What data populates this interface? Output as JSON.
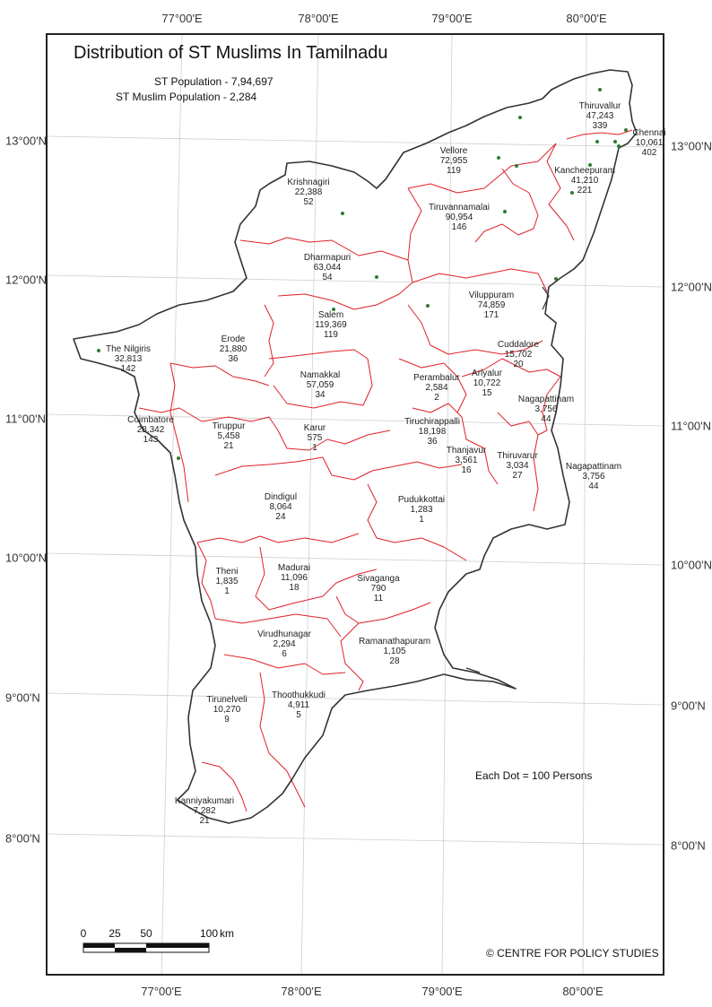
{
  "title": "Distribution of ST Muslims In Tamilnadu",
  "stats": {
    "st_population": "ST Population - 7,94,697",
    "st_muslim_population": "ST Muslim Population - 2,284"
  },
  "longitudes": [
    "77°00'E",
    "78°00'E",
    "79°00'E",
    "80°00'E"
  ],
  "latitudes": [
    "13°00'N",
    "12°00'N",
    "11°00'N",
    "10°00'N",
    "9°00'N",
    "8°00'N"
  ],
  "districts": [
    {
      "name": "Thiruvallur",
      "st_pop": "47,243",
      "muslims": "339"
    },
    {
      "name": "Chennai",
      "st_pop": "10,061",
      "muslims": "402"
    },
    {
      "name": "Vellore",
      "st_pop": "72,955",
      "muslims": "119"
    },
    {
      "name": "Kancheepuram",
      "st_pop": "41,210",
      "muslims": "221"
    },
    {
      "name": "Krishnagiri",
      "st_pop": "22,388",
      "muslims": "52"
    },
    {
      "name": "Tiruvannamalai",
      "st_pop": "90,954",
      "muslims": "146"
    },
    {
      "name": "Dharmapuri",
      "st_pop": "63,044",
      "muslims": "54"
    },
    {
      "name": "Salem",
      "st_pop": "119,369",
      "muslims": "119"
    },
    {
      "name": "Viluppuram",
      "st_pop": "74,859",
      "muslims": "171"
    },
    {
      "name": "The Nilgiris",
      "st_pop": "32,813",
      "muslims": "142"
    },
    {
      "name": "Erode",
      "st_pop": "21,880",
      "muslims": "36"
    },
    {
      "name": "Cuddalore",
      "st_pop": "15,702",
      "muslims": "20"
    },
    {
      "name": "Namakkal",
      "st_pop": "57,059",
      "muslims": "34"
    },
    {
      "name": "Perambalur",
      "st_pop": "2,584",
      "muslims": "2"
    },
    {
      "name": "Ariyalur",
      "st_pop": "10,722",
      "muslims": "15"
    },
    {
      "name": "Nagapattinam",
      "st_pop": "3,756",
      "muslims": "44"
    },
    {
      "name": "Coimbatore",
      "st_pop": "28,342",
      "muslims": "143"
    },
    {
      "name": "Tiruppur",
      "st_pop": "5,458",
      "muslims": "21"
    },
    {
      "name": "Karur",
      "st_pop": "575",
      "muslims": "1"
    },
    {
      "name": "Tiruchirappalli",
      "st_pop": "18,198",
      "muslims": "36"
    },
    {
      "name": "Thanjavur",
      "st_pop": "3,561",
      "muslims": "16"
    },
    {
      "name": "Thiruvarur",
      "st_pop": "3,034",
      "muslims": "27"
    },
    {
      "name": "Nagapattinam",
      "st_pop": "3,756",
      "muslims": "44"
    },
    {
      "name": "Dindigul",
      "st_pop": "8,064",
      "muslims": "24"
    },
    {
      "name": "Pudukkottai",
      "st_pop": "1,283",
      "muslims": "1"
    },
    {
      "name": "Theni",
      "st_pop": "1,835",
      "muslims": "1"
    },
    {
      "name": "Madurai",
      "st_pop": "11,096",
      "muslims": "18"
    },
    {
      "name": "Sivaganga",
      "st_pop": "790",
      "muslims": "11"
    },
    {
      "name": "Virudhunagar",
      "st_pop": "2,294",
      "muslims": "6"
    },
    {
      "name": "Ramanathapuram",
      "st_pop": "1,105",
      "muslims": "28"
    },
    {
      "name": "Tirunelveli",
      "st_pop": "10,270",
      "muslims": "9"
    },
    {
      "name": "Thoothukkudi",
      "st_pop": "4,911",
      "muslims": "5"
    },
    {
      "name": "Kanniyakumari",
      "st_pop": "7,282",
      "muslims": "21"
    }
  ],
  "dot_legend": "Each Dot = 100 Persons",
  "scale": {
    "ticks": [
      "0",
      "25",
      "50",
      "100"
    ],
    "unit": "km"
  },
  "credit": "© CENTRE FOR POLICY STUDIES",
  "colors": {
    "state_boundary": "#333333",
    "district_boundary": "#e0202a",
    "dot": "#2e7d32",
    "graticule": "#cfcfcf"
  }
}
